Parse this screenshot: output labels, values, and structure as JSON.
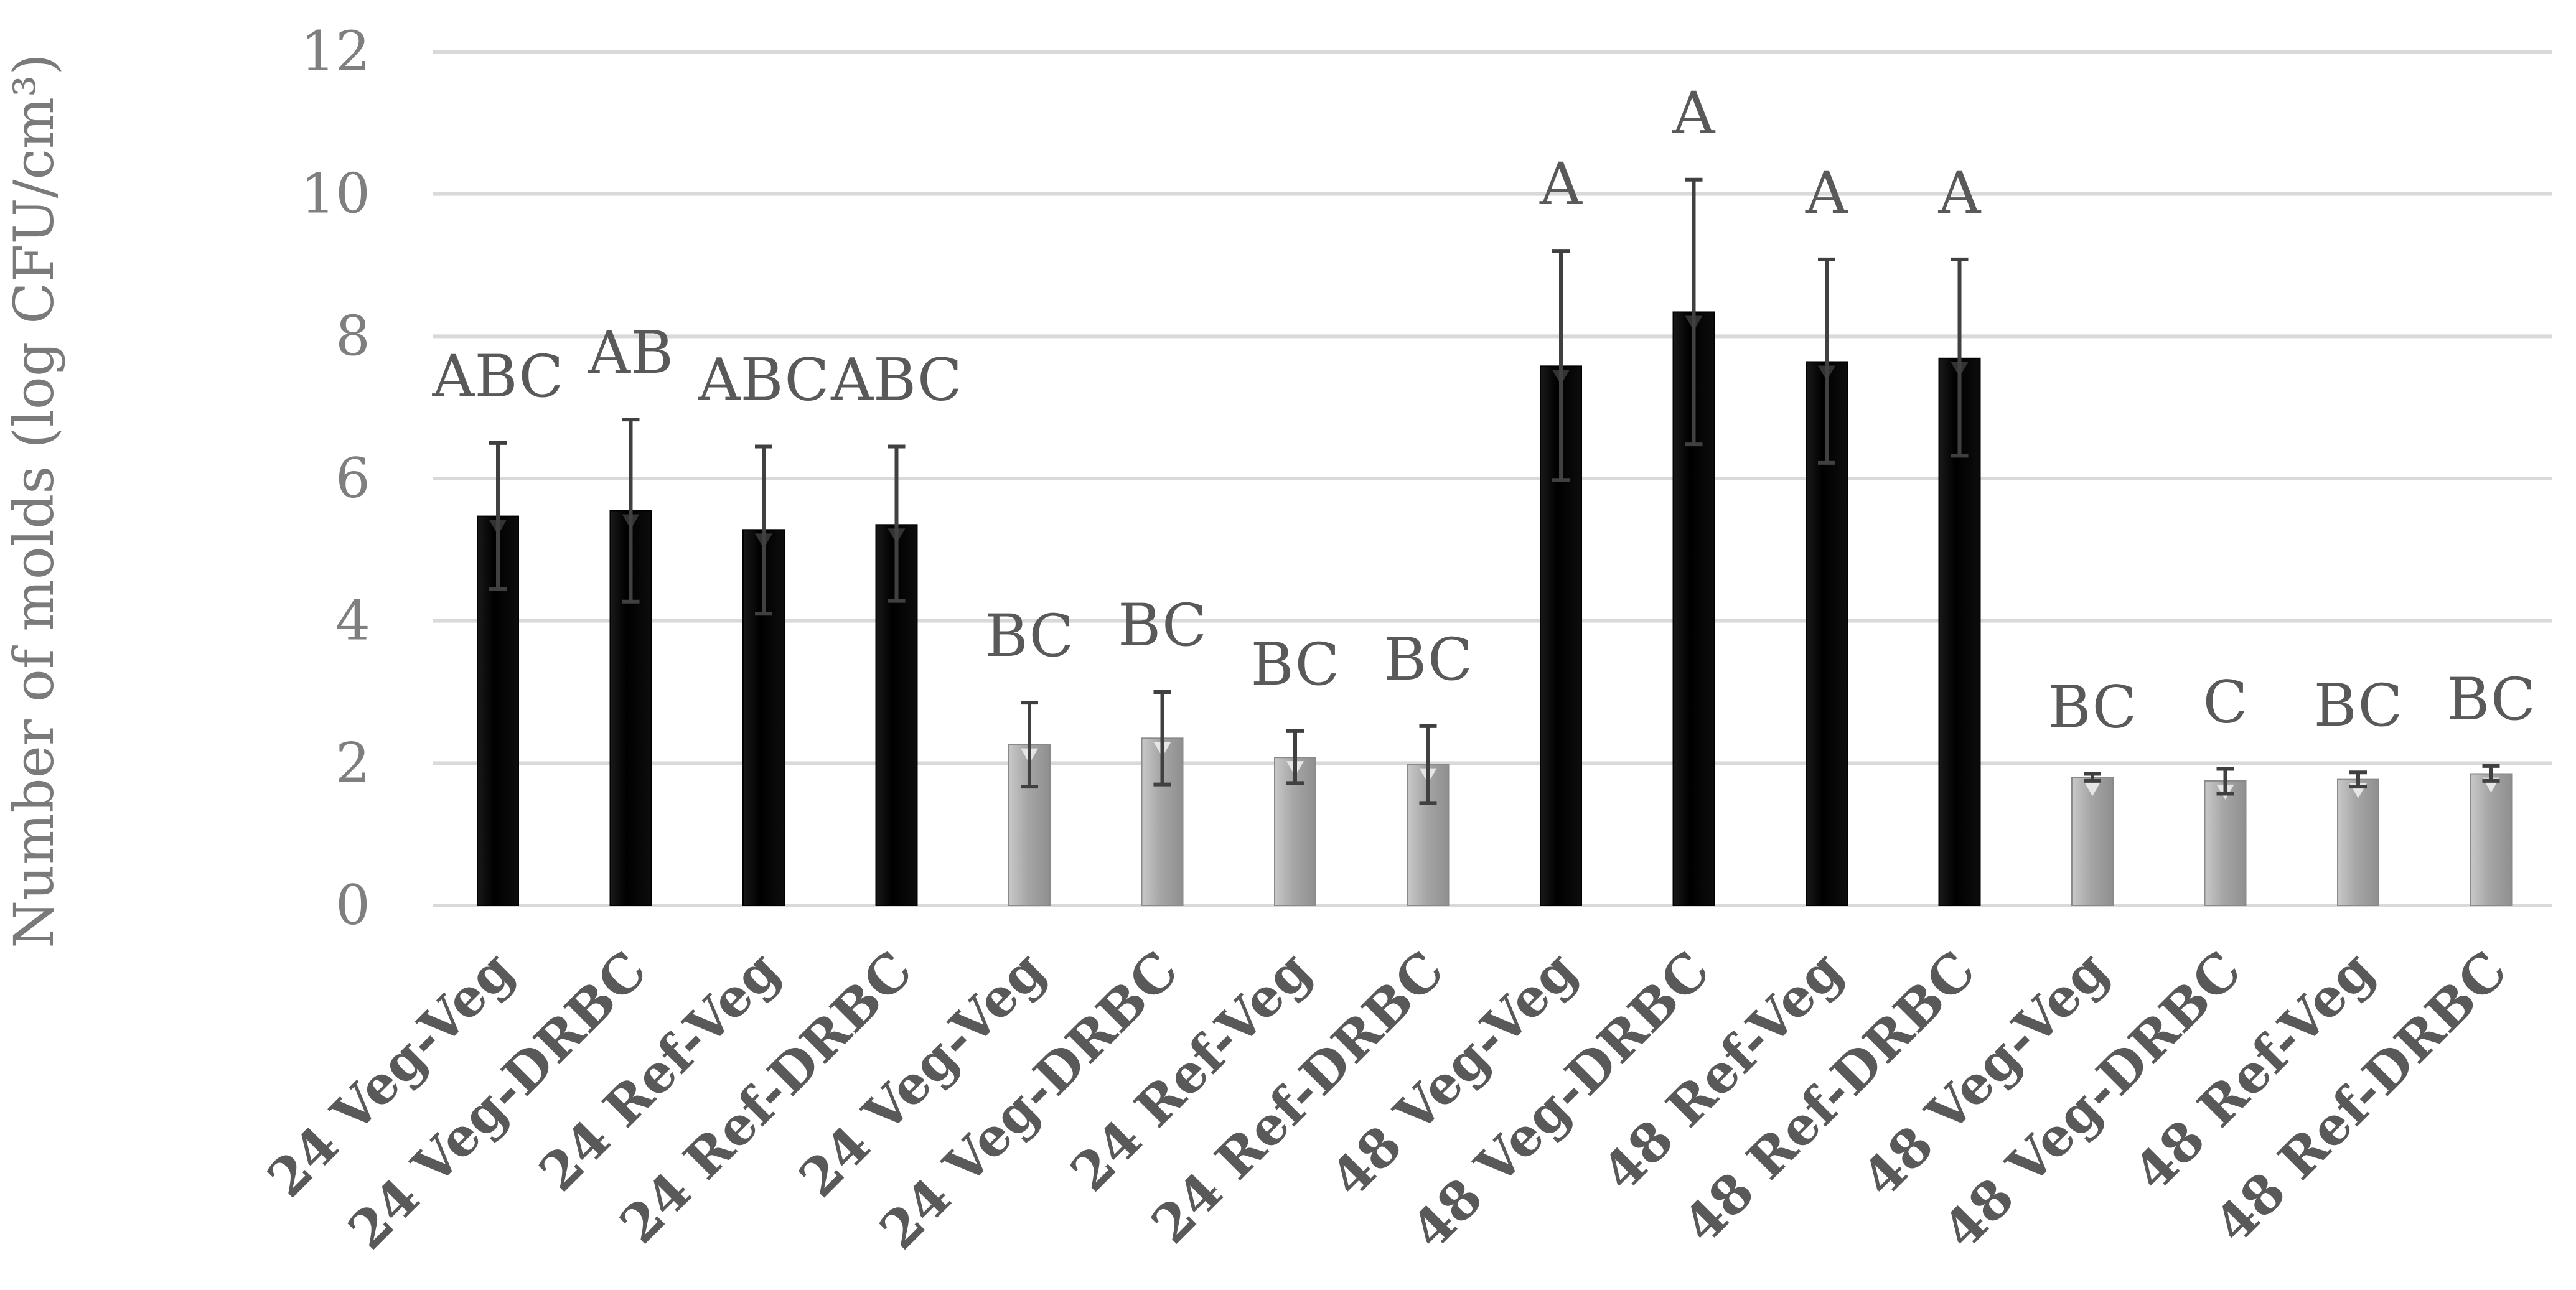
{
  "chart_data": {
    "type": "bar",
    "title": "",
    "xlabel": "",
    "ylabel": "Number of molds (log CFU/cm³)",
    "ylim": [
      0,
      12
    ],
    "yticks": [
      0,
      2,
      4,
      6,
      8,
      10,
      12
    ],
    "grid": true,
    "legend": "none",
    "categories": [
      "24 Veg-Veg",
      "24 Veg-DRBC",
      "24 Ref-Veg",
      "24 Ref-DRBC",
      "24 Veg-Veg",
      "24 Veg-DRBC",
      "24 Ref-Veg",
      "24 Ref-DRBC",
      "48 Veg-Veg",
      "48 Veg-DRBC",
      "48 Ref-Veg",
      "48 Ref-DRBC",
      "48 Veg-Veg",
      "48 Veg-DRBC",
      "48 Ref-Veg",
      "48 Ref-DRBC"
    ],
    "values": [
      5.47,
      5.55,
      5.28,
      5.35,
      2.26,
      2.35,
      2.08,
      1.98,
      7.58,
      8.34,
      7.64,
      7.69,
      1.8,
      1.75,
      1.77,
      1.85
    ],
    "error_low": [
      4.45,
      4.27,
      4.1,
      4.28,
      1.67,
      1.7,
      1.72,
      1.44,
      5.98,
      6.48,
      6.22,
      6.32,
      1.75,
      1.57,
      1.67,
      1.75
    ],
    "error_high": [
      6.5,
      6.83,
      6.45,
      6.45,
      2.85,
      3.0,
      2.45,
      2.52,
      9.2,
      10.2,
      9.08,
      9.08,
      1.85,
      1.92,
      1.87,
      1.96
    ],
    "group_labels": [
      "ABC",
      "AB",
      "ABC",
      "ABC",
      "BC",
      "BC",
      "BC",
      "BC",
      "A",
      "A",
      "A",
      "A",
      "BC",
      "C",
      "BC",
      "BC"
    ],
    "bar_colors": [
      "#000000",
      "#000000",
      "#000000",
      "#000000",
      "#a6a6a6",
      "#a6a6a6",
      "#a6a6a6",
      "#a6a6a6",
      "#000000",
      "#000000",
      "#000000",
      "#000000",
      "#a6a6a6",
      "#a6a6a6",
      "#a6a6a6",
      "#a6a6a6"
    ],
    "colors": {
      "dark_bar": "#000000",
      "light_bar": "#a6a6a6",
      "gridline": "#d9d9d9",
      "axis_text": "#7f7f7f",
      "category_text": "#595959",
      "error_bar": "#404040"
    }
  }
}
